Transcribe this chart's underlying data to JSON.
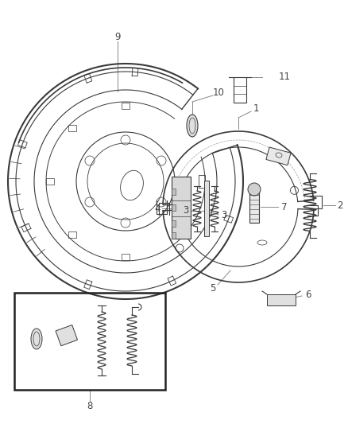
{
  "background_color": "#ffffff",
  "fig_width": 4.38,
  "fig_height": 5.33,
  "dpi": 100,
  "line_color": "#3a3a3a",
  "text_color": "#444444",
  "leader_color": "#888888"
}
